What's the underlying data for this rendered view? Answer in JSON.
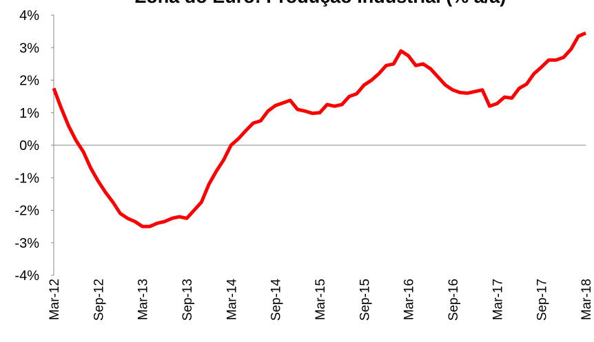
{
  "chart_data": {
    "type": "line",
    "title": "Zona do Euro: Produção Industrial (% a/a)",
    "categories": [
      "Mar-12",
      null,
      null,
      null,
      null,
      null,
      "Sep-12",
      null,
      null,
      null,
      null,
      null,
      "Mar-13",
      null,
      null,
      null,
      null,
      null,
      "Sep-13",
      null,
      null,
      null,
      null,
      null,
      "Mar-14",
      null,
      null,
      null,
      null,
      null,
      "Sep-14",
      null,
      null,
      null,
      null,
      null,
      "Mar-15",
      null,
      null,
      null,
      null,
      null,
      "Sep-15",
      null,
      null,
      null,
      null,
      null,
      "Mar-16",
      null,
      null,
      null,
      null,
      null,
      "Sep-16",
      null,
      null,
      null,
      null,
      null,
      "Mar-17",
      null,
      null,
      null,
      null,
      null,
      "Sep-17",
      null,
      null,
      null,
      null,
      null,
      "Mar-18"
    ],
    "series": [
      {
        "color": "#ff0000",
        "values": [
          1.75,
          1.15,
          0.6,
          0.15,
          -0.2,
          -0.7,
          -1.1,
          -1.45,
          -1.75,
          -2.1,
          -2.25,
          -2.35,
          -2.5,
          -2.5,
          -2.4,
          -2.35,
          -2.25,
          -2.2,
          -2.25,
          -2.0,
          -1.75,
          -1.2,
          -0.8,
          -0.45,
          0.0,
          0.2,
          0.45,
          0.68,
          0.75,
          1.05,
          1.22,
          1.3,
          1.38,
          1.1,
          1.05,
          0.98,
          1.0,
          1.25,
          1.2,
          1.25,
          1.5,
          1.58,
          1.85,
          2.0,
          2.2,
          2.45,
          2.5,
          2.9,
          2.75,
          2.45,
          2.5,
          2.35,
          2.1,
          1.85,
          1.7,
          1.62,
          1.6,
          1.65,
          1.7,
          1.2,
          1.28,
          1.48,
          1.45,
          1.75,
          1.88,
          2.2,
          2.4,
          2.62,
          2.62,
          2.7,
          2.95,
          3.35,
          3.45
        ]
      }
    ],
    "ylim": [
      -4,
      4
    ],
    "yticks": [
      {
        "value": -4,
        "label": "-4%"
      },
      {
        "value": -3,
        "label": "-3%"
      },
      {
        "value": -2,
        "label": "-2%"
      },
      {
        "value": -1,
        "label": "-1%"
      },
      {
        "value": 0,
        "label": "0%"
      },
      {
        "value": 1,
        "label": "1%"
      },
      {
        "value": 2,
        "label": "2%"
      },
      {
        "value": 3,
        "label": "3%"
      },
      {
        "value": 4,
        "label": "4%"
      }
    ]
  }
}
